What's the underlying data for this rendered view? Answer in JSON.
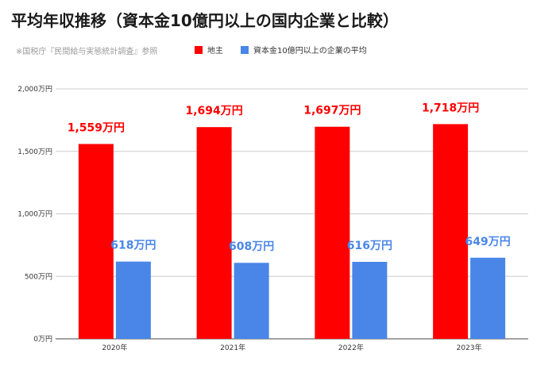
{
  "chart_data": {
    "type": "bar",
    "title": "平均年収推移（資本金10億円以上の国内企業と比較）",
    "subtitle": "※国税庁『民間給与実態統計調査』参照",
    "categories": [
      "2020年",
      "2021年",
      "2022年",
      "2023年"
    ],
    "series": [
      {
        "name": "地主",
        "color": "#ff0000",
        "values": [
          1559,
          1694,
          1697,
          1718
        ],
        "labels": [
          "1,559万円",
          "1,694万円",
          "1,697万円",
          "1,718万円"
        ]
      },
      {
        "name": "資本金10億円以上の企業の平均",
        "color": "#4a86e8",
        "values": [
          618,
          608,
          616,
          649
        ],
        "labels": [
          "618万円",
          "608万円",
          "616万円",
          "649万円"
        ]
      }
    ],
    "ylim": [
      0,
      2000
    ],
    "yticks": [
      0,
      500,
      1000,
      1500,
      2000
    ],
    "ytick_labels": [
      "0万円",
      "500万円",
      "1,000万円",
      "1,500万円",
      "2,000万円"
    ],
    "grid": true,
    "legend_position": "top"
  }
}
